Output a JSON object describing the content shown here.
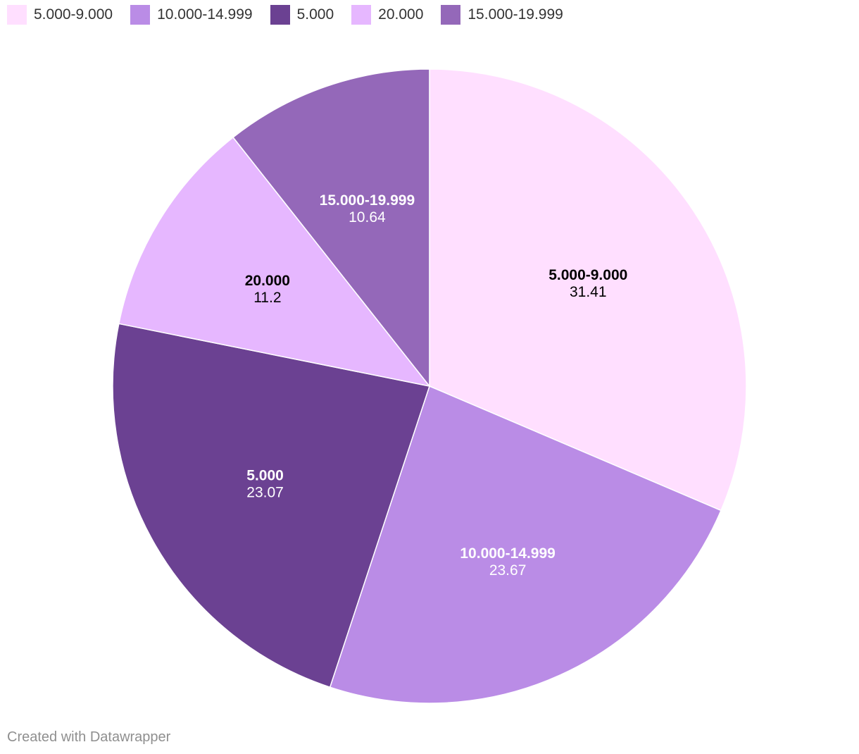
{
  "chart_data": {
    "type": "pie",
    "legend_position": "top-left",
    "slices": [
      {
        "label": "5.000-9.000",
        "value": 31.41,
        "value_text": "31.41",
        "color": "#ffdfff",
        "label_color": "#000000"
      },
      {
        "label": "10.000-14.999",
        "value": 23.67,
        "value_text": "23.67",
        "color": "#ba8ce6",
        "label_color": "#ffffff"
      },
      {
        "label": "5.000",
        "value": 23.07,
        "value_text": "23.07",
        "color": "#6b4192",
        "label_color": "#ffffff"
      },
      {
        "label": "20.000",
        "value": 11.2,
        "value_text": "11.2",
        "color": "#e6b7ff",
        "label_color": "#000000"
      },
      {
        "label": "15.000-19.999",
        "value": 10.64,
        "value_text": "10.64",
        "color": "#9468b9",
        "label_color": "#ffffff"
      }
    ]
  },
  "footer": {
    "credit": "Created with Datawrapper"
  }
}
